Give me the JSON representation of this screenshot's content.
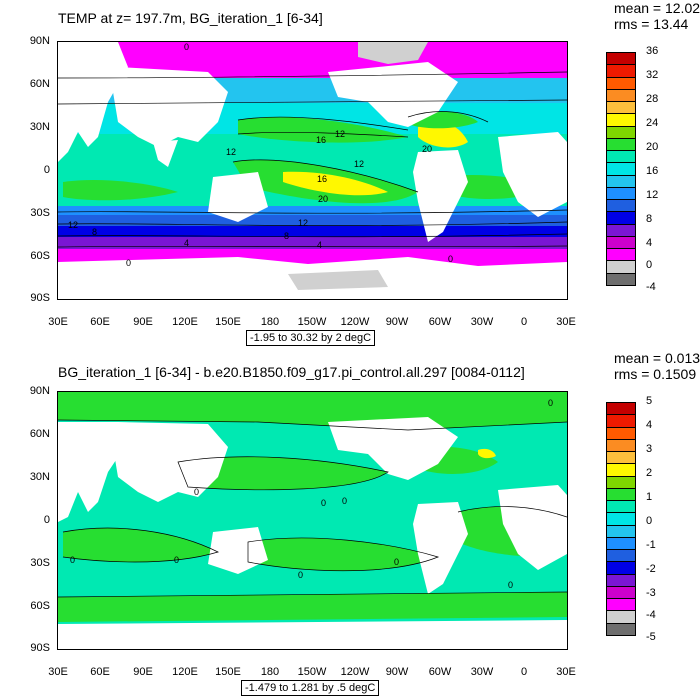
{
  "panels": [
    {
      "title": "TEMP at z= 197.7m, BG_iteration_1 [6-34]",
      "stats": {
        "mean": "mean = 12.02",
        "rms": "rms = 13.44"
      },
      "range_label": "-1.95 to 30.32 by 2 degC",
      "colorbar_labels": [
        "36",
        "32",
        "28",
        "24",
        "20",
        "16",
        "12",
        "8",
        "4",
        "0",
        "-4"
      ],
      "contour_labels": [
        "0",
        "12",
        "16",
        "12",
        "12",
        "16",
        "20",
        "20",
        "12",
        "12",
        "8",
        "8",
        "4",
        "4",
        "0",
        "0"
      ]
    },
    {
      "title": "BG_iteration_1 [6-34] - b.e20.B1850.f09_g17.pi_control.all.297 [0084-0112]",
      "stats": {
        "mean": "mean = 0.01351",
        "rms": "rms = 0.1509"
      },
      "range_label": "-1.479 to 1.281 by .5 degC",
      "colorbar_labels": [
        "5",
        "4",
        "3",
        "2",
        "1",
        "0",
        "-1",
        "-2",
        "-3",
        "-4",
        "-5"
      ],
      "contour_labels": [
        "0",
        "0",
        "0",
        "0",
        "0",
        "0",
        "0",
        "0",
        "0"
      ]
    }
  ],
  "axes": {
    "y_ticks": [
      "90N",
      "60N",
      "30N",
      "0",
      "30S",
      "60S",
      "90S"
    ],
    "x_ticks": [
      "30E",
      "60E",
      "90E",
      "120E",
      "150E",
      "180",
      "150W",
      "120W",
      "90W",
      "60W",
      "30W",
      "0",
      "30E"
    ]
  },
  "colors": {
    "colorbar_top": [
      "#c40000",
      "#ee1a00",
      "#ff5a00",
      "#fb8c22",
      "#fdbf3c",
      "#fff800",
      "#7fd600",
      "#27de31",
      "#00e9b2",
      "#00e5e5",
      "#23c4ef",
      "#1e90ff",
      "#1f5fe0",
      "#0000e6",
      "#7a16d3",
      "#cc00cc",
      "#ff00ff",
      "#d0d0d0",
      "#6e6e6e"
    ],
    "land": "#ffffff",
    "ice": "#d0d0d0"
  },
  "chart_data": [
    {
      "type": "heatmap",
      "title": "TEMP at z= 197.7m, BG_iteration_1 [6-34]",
      "variable": "TEMP",
      "units": "degC",
      "mean": 12.02,
      "rms": 13.44,
      "contour_range": {
        "min": -1.95,
        "max": 30.32,
        "interval": 2
      },
      "colorbar_levels": [
        -4,
        -2,
        0,
        2,
        4,
        6,
        8,
        10,
        12,
        14,
        16,
        18,
        20,
        22,
        24,
        26,
        28,
        30,
        32,
        34,
        36
      ],
      "x_axis": {
        "ticks": [
          "30E",
          "60E",
          "90E",
          "120E",
          "150E",
          "180",
          "150W",
          "120W",
          "90W",
          "60W",
          "30W",
          "0",
          "30E"
        ],
        "range": [
          30,
          390
        ],
        "units": "degrees longitude"
      },
      "y_axis": {
        "ticks": [
          "90N",
          "60N",
          "30N",
          "0",
          "30S",
          "60S",
          "90S"
        ],
        "range": [
          -90,
          90
        ],
        "units": "degrees latitude"
      }
    },
    {
      "type": "heatmap",
      "title": "BG_iteration_1 [6-34] - b.e20.B1850.f09_g17.pi_control.all.297 [0084-0112]",
      "variable": "TEMP difference",
      "units": "degC",
      "mean": 0.01351,
      "rms": 0.1509,
      "contour_range": {
        "min": -1.479,
        "max": 1.281,
        "interval": 0.5
      },
      "colorbar_levels": [
        -5,
        -4.5,
        -4,
        -3.5,
        -3,
        -2.5,
        -2,
        -1.5,
        -1,
        -0.5,
        0,
        0.5,
        1,
        1.5,
        2,
        2.5,
        3,
        3.5,
        4,
        4.5,
        5
      ],
      "x_axis": {
        "ticks": [
          "30E",
          "60E",
          "90E",
          "120E",
          "150E",
          "180",
          "150W",
          "120W",
          "90W",
          "60W",
          "30W",
          "0",
          "30E"
        ],
        "range": [
          30,
          390
        ],
        "units": "degrees longitude"
      },
      "y_axis": {
        "ticks": [
          "90N",
          "60N",
          "30N",
          "0",
          "30S",
          "60S",
          "90S"
        ],
        "range": [
          -90,
          90
        ],
        "units": "degrees latitude"
      }
    }
  ]
}
